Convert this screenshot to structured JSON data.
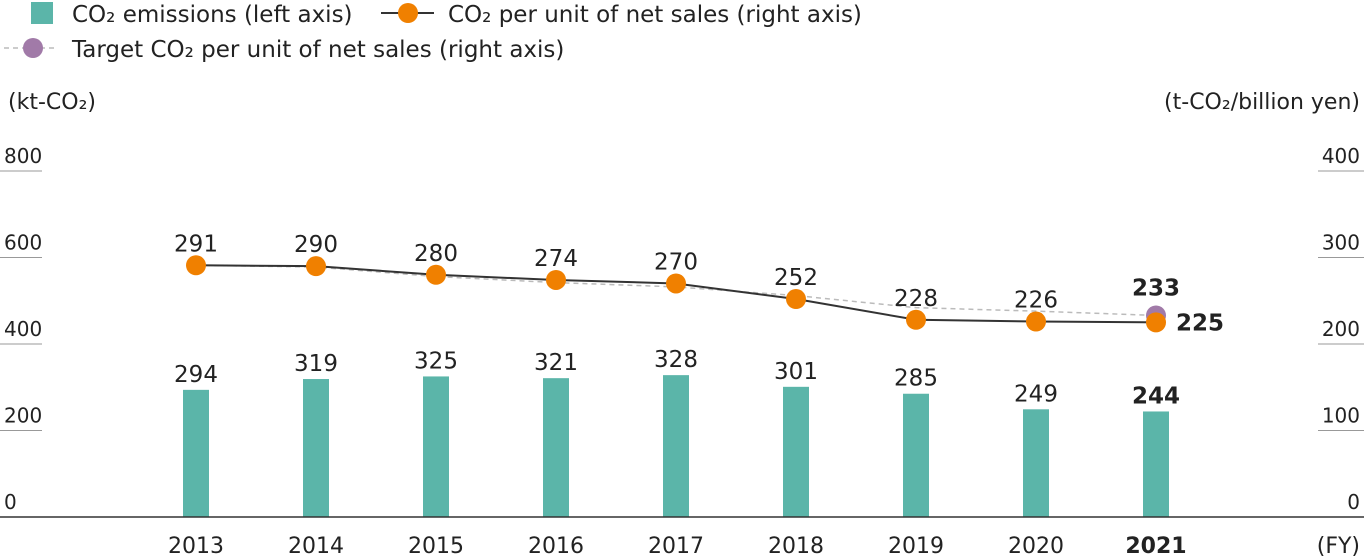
{
  "chart_data": {
    "type": "bar+line",
    "categories": [
      "2013",
      "2014",
      "2015",
      "2016",
      "2017",
      "2018",
      "2019",
      "2020",
      "2021"
    ],
    "highlight_category": "2021",
    "x_unit": "(FY)",
    "left_axis": {
      "unit": "(kt-CO₂)",
      "ticks": [
        0,
        200,
        400,
        600,
        800
      ],
      "ylim": [
        0,
        800
      ]
    },
    "right_axis": {
      "unit": "(t-CO₂/billion yen)",
      "ticks": [
        0,
        100,
        200,
        300,
        400
      ],
      "ylim": [
        0,
        400
      ]
    },
    "series": [
      {
        "name": "CO₂ emissions (left axis)",
        "kind": "bar",
        "axis": "left",
        "color": "#5bb5a9",
        "values": [
          294,
          319,
          325,
          321,
          328,
          301,
          285,
          249,
          244
        ]
      },
      {
        "name": "CO₂ per unit of net sales (right axis)",
        "kind": "line",
        "axis": "right",
        "color": "#f08000",
        "line_color": "#333333",
        "values": [
          291,
          290,
          280,
          274,
          270,
          252,
          228,
          226,
          225
        ]
      },
      {
        "name": "Target CO₂ per unit of net sales (right axis)",
        "kind": "dashed-line",
        "axis": "right",
        "color": "#a17aa8",
        "line_color": "#bbbbbb",
        "values": [
          291,
          289,
          278,
          271,
          266,
          256,
          242,
          238,
          233
        ],
        "labelled_index": 8
      }
    ],
    "grid": true,
    "legend_position": "top-left"
  }
}
